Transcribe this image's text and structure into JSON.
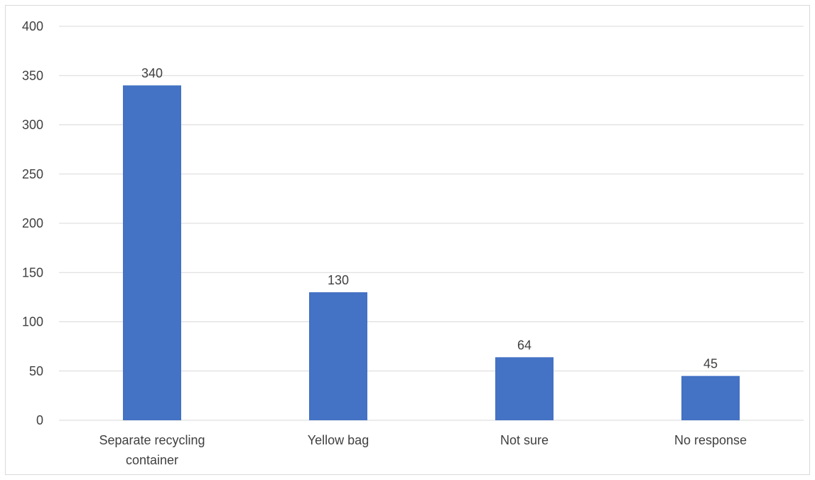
{
  "chart_data": {
    "type": "bar",
    "categories": [
      "Separate recycling container",
      "Yellow bag",
      "Not sure",
      "No response"
    ],
    "category_lines": [
      [
        "Separate recycling",
        "container"
      ],
      [
        "Yellow bag"
      ],
      [
        "Not sure"
      ],
      [
        "No response"
      ]
    ],
    "values": [
      340,
      130,
      64,
      45
    ],
    "data_labels": [
      "340",
      "130",
      "64",
      "45"
    ],
    "title": "",
    "xlabel": "",
    "ylabel": "",
    "ylim": [
      0,
      400
    ],
    "yticks": [
      0,
      50,
      100,
      150,
      200,
      250,
      300,
      350,
      400
    ],
    "grid": true,
    "legend": "none",
    "colors": {
      "bar": "#4472C4",
      "grid": "#d9d9d9",
      "text": "#404040",
      "border": "#d9d9d9"
    }
  }
}
